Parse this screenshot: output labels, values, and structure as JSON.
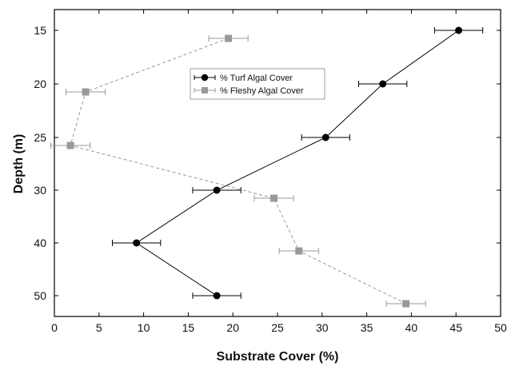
{
  "chart_data": {
    "type": "line",
    "xlabel": "Substrate Cover (%)",
    "ylabel": "Depth (m)",
    "xlim": [
      0,
      50
    ],
    "x_ticks": [
      0,
      5,
      10,
      15,
      20,
      25,
      30,
      35,
      40,
      45,
      50
    ],
    "y_categories": [
      "15",
      "20",
      "25",
      "30",
      "40",
      "50"
    ],
    "y_inverted": true,
    "grid": false,
    "legend_position": "top-center",
    "series": [
      {
        "name": "% Turf Algal Cover",
        "marker": "circle",
        "line_style": "solid",
        "color": "#000000",
        "depths": [
          "15",
          "20",
          "25",
          "30",
          "40",
          "50"
        ],
        "values": [
          45.3,
          36.8,
          30.4,
          18.2,
          9.2,
          18.2
        ],
        "errors": [
          2.7,
          2.7,
          2.7,
          2.7,
          2.7,
          2.7
        ]
      },
      {
        "name": "% Fleshy Algal Cover",
        "marker": "square",
        "line_style": "dashed",
        "color": "#999999",
        "depths": [
          "15",
          "20",
          "25",
          "30",
          "40",
          "50"
        ],
        "values": [
          19.5,
          3.5,
          1.8,
          24.6,
          27.4,
          39.4
        ],
        "errors": [
          2.2,
          2.2,
          2.2,
          2.2,
          2.2,
          2.2
        ],
        "y_offset_fraction": [
          0.15,
          0.15,
          0.15,
          0.15,
          0.15,
          0.15
        ]
      }
    ]
  }
}
